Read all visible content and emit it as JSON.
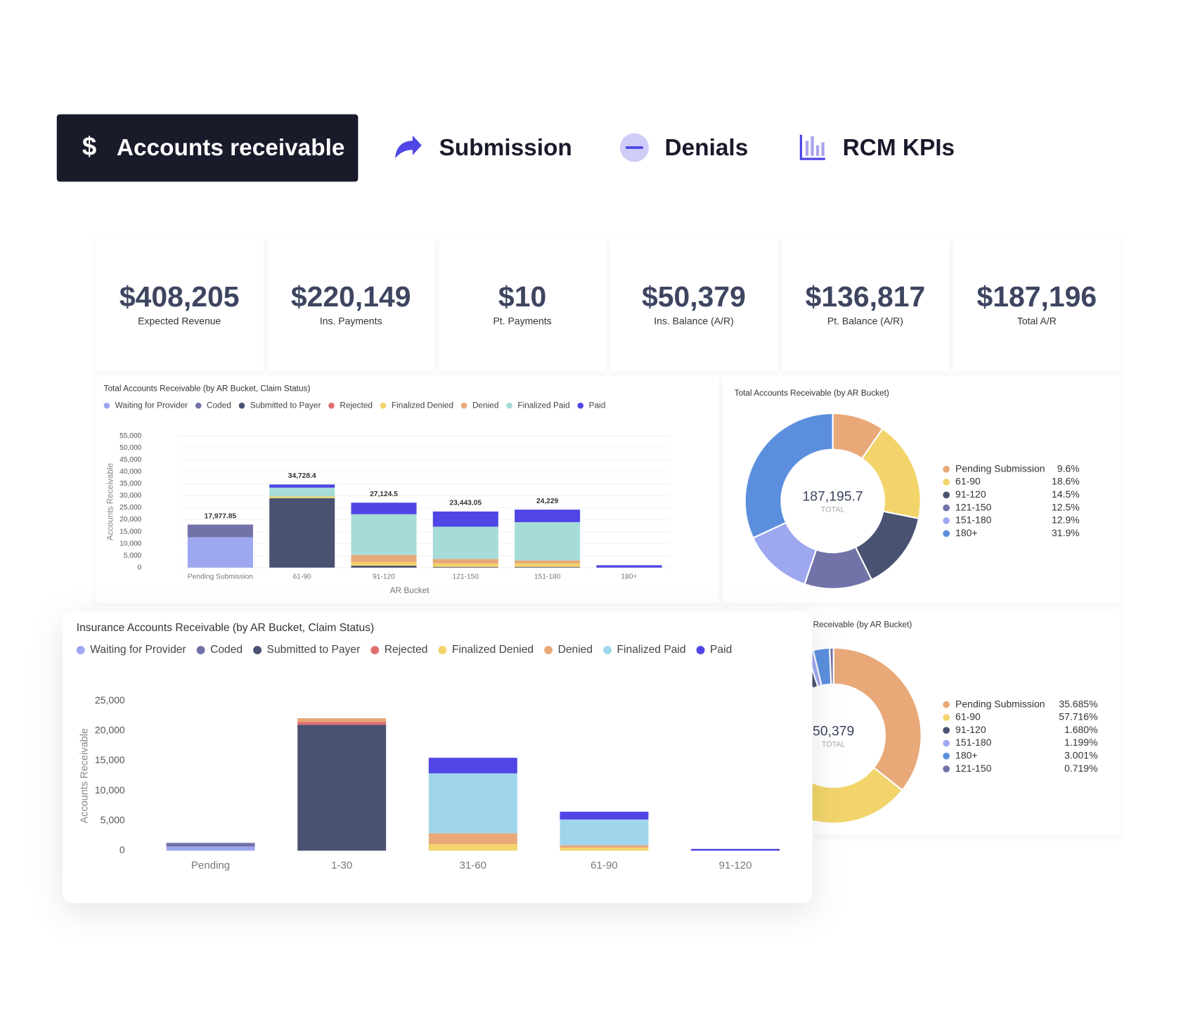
{
  "tabs": [
    {
      "icon": "$",
      "label": "Accounts receivable"
    },
    {
      "label": "Submission"
    },
    {
      "label": "Denials"
    },
    {
      "label": "RCM KPIs"
    }
  ],
  "kpis": [
    {
      "value": "$408,205",
      "label": "Expected Revenue"
    },
    {
      "value": "$220,149",
      "label": "Ins. Payments"
    },
    {
      "value": "$10",
      "label": "Pt. Payments"
    },
    {
      "value": "$50,379",
      "label": "Ins. Balance (A/R)"
    },
    {
      "value": "$136,817",
      "label": "Pt. Balance (A/R)"
    },
    {
      "value": "$187,196",
      "label": "Total A/R"
    }
  ],
  "chart_data": [
    {
      "type": "stacked-bar",
      "title": "Total Accounts Receivable (by AR Bucket, Claim Status)",
      "xlabel": "AR Bucket",
      "ylabel": "Accounts Receivable",
      "categories": [
        "Pending Submission",
        "61-90",
        "91-120",
        "121-150",
        "151-180",
        "180+"
      ],
      "series": [
        {
          "name": "Waiting for Provider",
          "color": "#9ea8f0",
          "values": [
            12700,
            0,
            0,
            0,
            0,
            0
          ]
        },
        {
          "name": "Coded",
          "color": "#7272a8",
          "values": [
            5277.85,
            0,
            0,
            0,
            0,
            0
          ]
        },
        {
          "name": "Submitted to Payer",
          "color": "#4a5272",
          "values": [
            0,
            29000,
            800,
            300,
            300,
            0
          ]
        },
        {
          "name": "Rejected",
          "color": "#e07070",
          "values": [
            0,
            0,
            0,
            0,
            0,
            0
          ]
        },
        {
          "name": "Finalized Denied",
          "color": "#f2d46b",
          "values": [
            0,
            700,
            1500,
            1500,
            1500,
            0
          ]
        },
        {
          "name": "Denied",
          "color": "#e8a878",
          "values": [
            0,
            0,
            3000,
            1800,
            1200,
            0
          ]
        },
        {
          "name": "Finalized Paid",
          "color": "#a6dcd8",
          "values": [
            0,
            3700,
            17000,
            13500,
            16000,
            0
          ]
        },
        {
          "name": "Paid",
          "color": "#4f46e5",
          "values": [
            0,
            1328.4,
            4824.5,
            6343.05,
            5229,
            1000
          ]
        }
      ],
      "totals": [
        17977.85,
        34728.4,
        27124.5,
        23443.05,
        24229,
        null
      ],
      "total_labels": [
        "17,977.85",
        "34,728.4",
        "27,124.5",
        "23,443.05",
        "24,229",
        null
      ],
      "ylim": [
        0,
        55000
      ],
      "yticks": [
        0,
        {
          "value": 5000,
          "label": "5,000"
        },
        {
          "value": 10000,
          "label": "10,000"
        },
        {
          "value": 15000,
          "label": "15,000"
        },
        {
          "value": 20000,
          "label": "20,000"
        },
        {
          "value": 25000,
          "label": "25,000"
        },
        {
          "value": 30000,
          "label": "30,000"
        },
        {
          "value": 35000,
          "label": "35,000"
        },
        {
          "value": 40000,
          "label": "40,000"
        },
        {
          "value": 45000,
          "label": "45,000"
        },
        {
          "value": 50000,
          "label": "50,000"
        },
        {
          "value": 55000,
          "label": "55,000"
        }
      ],
      "grid": true
    },
    {
      "type": "donut",
      "title": "Total Accounts Receivable (by AR Bucket)",
      "center": "187,195.7",
      "center_caption": "TOTAL",
      "categories": [
        "Pending Submission",
        "61-90",
        "91-120",
        "121-150",
        "151-180",
        "180+"
      ],
      "values": [
        9.6,
        18.6,
        14.5,
        12.5,
        12.9,
        31.9
      ],
      "value_labels": [
        "9.6%",
        "18.6%",
        "14.5%",
        "12.5%",
        "12.9%",
        "31.9%"
      ],
      "colors": [
        "#e8a878",
        "#f2d46b",
        "#4a5272",
        "#7272a8",
        "#9ea8f0",
        "#5b8fde"
      ]
    },
    {
      "type": "stacked-bar",
      "title": "Insurance Accounts Receivable (by AR Bucket, Claim Status)",
      "ylabel": "Accounts Receivable",
      "categories": [
        "Pending",
        "1-30",
        "31-60",
        "61-90",
        "91-120"
      ],
      "series": [
        {
          "name": "Waiting for Provider",
          "color": "#9ea8f0",
          "values": [
            700,
            0,
            0,
            0,
            0
          ]
        },
        {
          "name": "Coded",
          "color": "#7272a8",
          "values": [
            600,
            0,
            0,
            0,
            0
          ]
        },
        {
          "name": "Submitted to Payer",
          "color": "#4a5272",
          "values": [
            0,
            21000,
            0,
            0,
            0
          ]
        },
        {
          "name": "Rejected",
          "color": "#e07070",
          "values": [
            0,
            500,
            0,
            0,
            0
          ]
        },
        {
          "name": "Finalized Denied",
          "color": "#f2d46b",
          "values": [
            0,
            0,
            1100,
            500,
            0
          ]
        },
        {
          "name": "Denied",
          "color": "#e8a878",
          "values": [
            0,
            600,
            1800,
            400,
            0
          ]
        },
        {
          "name": "Finalized Paid",
          "color": "#a0d6ec",
          "values": [
            0,
            0,
            10000,
            4300,
            0
          ]
        },
        {
          "name": "Paid",
          "color": "#4f46e5",
          "values": [
            0,
            0,
            2600,
            1300,
            300
          ]
        }
      ],
      "ylim": [
        0,
        25000
      ],
      "yticks": [
        0,
        {
          "value": 5000,
          "label": "5,000"
        },
        {
          "value": 10000,
          "label": "10,000"
        },
        {
          "value": 15000,
          "label": "15,000"
        },
        {
          "value": 20000,
          "label": "20,000"
        },
        {
          "value": 25000,
          "label": "25,000"
        }
      ],
      "grid": false
    },
    {
      "type": "donut",
      "title": "Receivable (by AR Bucket)",
      "center": "50,379",
      "center_caption": "TOTAL",
      "categories": [
        "Pending Submission",
        "61-90",
        "91-120",
        "151-180",
        "180+",
        "121-150"
      ],
      "values": [
        35.685,
        57.716,
        1.68,
        1.199,
        3.001,
        0.719
      ],
      "value_labels": [
        "35.685%",
        "57.716%",
        "1.680%",
        "1.199%",
        "3.001%",
        "0.719%"
      ],
      "colors": [
        "#e8a878",
        "#f2d46b",
        "#4a5272",
        "#9ea8f0",
        "#5b8fde",
        "#7272a8"
      ]
    }
  ]
}
